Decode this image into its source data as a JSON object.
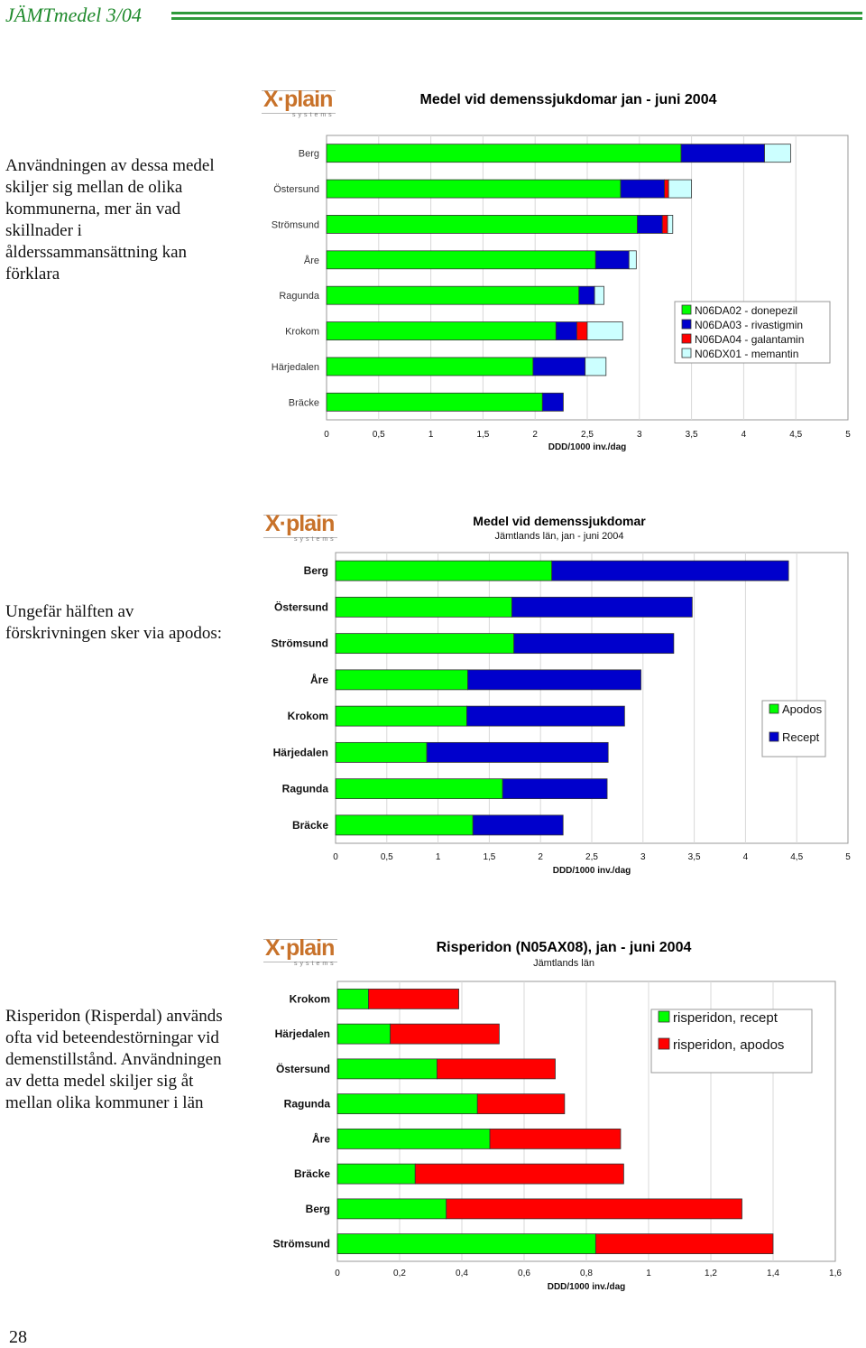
{
  "header": {
    "title": "JÄMTmedel 3/04"
  },
  "logo": {
    "word": "X·plain",
    "sub": "systems"
  },
  "texts": {
    "para1": "Användningen av dessa medel skiljer sig mellan de olika kommunerna, mer än vad skillnader i ålderssammansättning kan förklara",
    "para2": "Ungefär hälften av förskrivningen sker via apodos:",
    "para3": "Risperidon (Risperdal) används ofta vid beteendestörningar vid demenstillstånd. Användningen av detta medel skiljer sig åt mellan olika kommuner i län"
  },
  "page_number": "28",
  "charts": [
    {
      "title": "Medel vid demenssjukdomar jan - juni 2004",
      "subtitle": "",
      "xlabel": "DDD/1000 inv./dag"
    },
    {
      "title": "Medel vid demenssjukdomar",
      "subtitle": "Jämtlands län, jan - juni 2004",
      "xlabel": "DDD/1000 inv./dag"
    },
    {
      "title": "Risperidon (N05AX08), jan - juni 2004",
      "subtitle": "Jämtlands län",
      "xlabel": "DDD/1000 inv./dag"
    }
  ],
  "chart_data": [
    {
      "type": "bar",
      "orientation": "horizontal",
      "stacked": true,
      "title": "Medel vid demenssjukdomar jan - juni 2004",
      "xlabel": "DDD/1000 inv./dag",
      "xlim": [
        0,
        5
      ],
      "xticks": [
        "0",
        "0,5",
        "1",
        "1,5",
        "2",
        "2,5",
        "3",
        "3,5",
        "4",
        "4,5",
        "5"
      ],
      "categories": [
        "Berg",
        "Östersund",
        "Strömsund",
        "Åre",
        "Ragunda",
        "Krokom",
        "Härjedalen",
        "Bräcke"
      ],
      "series": [
        {
          "name": "N06DA02 - donepezil",
          "color": "#00ff00",
          "values": [
            3.4,
            2.82,
            2.98,
            2.58,
            2.42,
            2.2,
            1.98,
            2.07
          ]
        },
        {
          "name": "N06DA03 - rivastigmin",
          "color": "#0000cc",
          "values": [
            0.8,
            0.42,
            0.24,
            0.32,
            0.15,
            0.2,
            0.5,
            0.2
          ]
        },
        {
          "name": "N06DA04 - galantamin",
          "color": "#ff0000",
          "values": [
            0,
            0.04,
            0.05,
            0,
            0,
            0.1,
            0,
            0
          ]
        },
        {
          "name": "N06DX01 - memantin",
          "color": "#ccffff",
          "values": [
            0.25,
            0.22,
            0.05,
            0.07,
            0.09,
            0.34,
            0.2,
            0
          ]
        }
      ],
      "legend": "right"
    },
    {
      "type": "bar",
      "orientation": "horizontal",
      "stacked": true,
      "title": "Medel vid demenssjukdomar",
      "subtitle": "Jämtlands län, jan - juni 2004",
      "xlabel": "DDD/1000 inv./dag",
      "xlim": [
        0,
        5
      ],
      "xticks": [
        "0",
        "0,5",
        "1",
        "1,5",
        "2",
        "2,5",
        "3",
        "3,5",
        "4",
        "4,5",
        "5"
      ],
      "categories": [
        "Berg",
        "Östersund",
        "Strömsund",
        "Åre",
        "Krokom",
        "Härjedalen",
        "Ragunda",
        "Bräcke"
      ],
      "series": [
        {
          "name": "Apodos",
          "color": "#00ff00",
          "values": [
            2.11,
            1.72,
            1.74,
            1.29,
            1.28,
            0.89,
            1.63,
            1.34
          ]
        },
        {
          "name": "Recept",
          "color": "#0000cc",
          "values": [
            2.31,
            1.76,
            1.56,
            1.69,
            1.54,
            1.77,
            1.02,
            0.88
          ]
        }
      ],
      "legend": "right"
    },
    {
      "type": "bar",
      "orientation": "horizontal",
      "stacked": true,
      "title": "Risperidon (N05AX08), jan - juni 2004",
      "subtitle": "Jämtlands län",
      "xlabel": "DDD/1000 inv./dag",
      "xlim": [
        0,
        1.6
      ],
      "xticks": [
        "0",
        "0,2",
        "0,4",
        "0,6",
        "0,8",
        "1",
        "1,2",
        "1,4",
        "1,6"
      ],
      "categories": [
        "Krokom",
        "Härjedalen",
        "Östersund",
        "Ragunda",
        "Åre",
        "Bräcke",
        "Berg",
        "Strömsund"
      ],
      "series": [
        {
          "name": "risperidon, recept",
          "color": "#00ff00",
          "values": [
            0.1,
            0.17,
            0.32,
            0.45,
            0.49,
            0.25,
            0.35,
            0.83
          ]
        },
        {
          "name": "risperidon, apodos",
          "color": "#ff0000",
          "values": [
            0.29,
            0.35,
            0.38,
            0.28,
            0.42,
            0.67,
            0.95,
            0.57
          ]
        }
      ],
      "legend": "right"
    }
  ]
}
